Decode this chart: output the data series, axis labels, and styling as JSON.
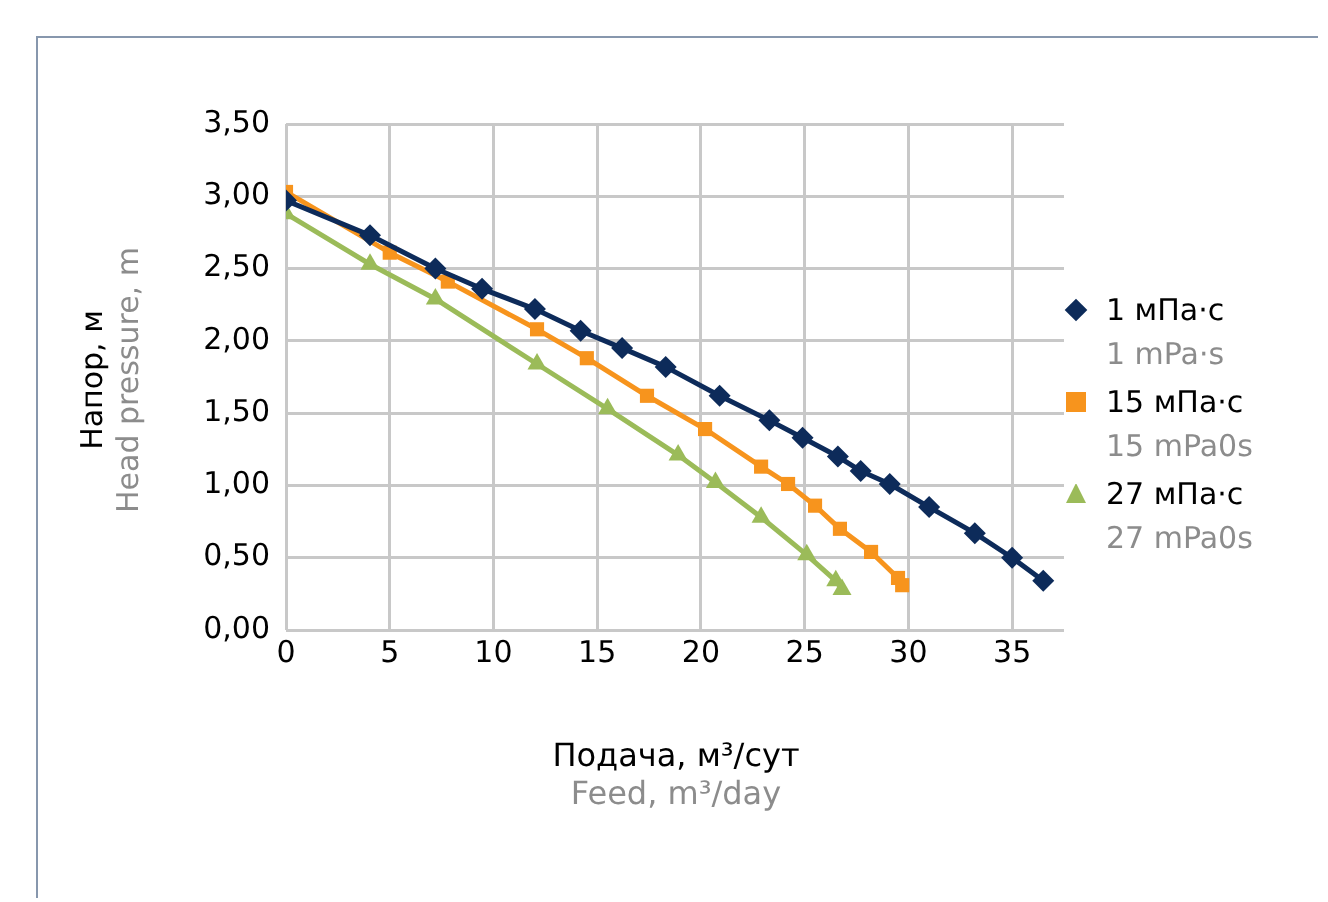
{
  "chart_data": {
    "type": "line",
    "xlabel": "Подача, м³/сут",
    "ylabel": "Напор, м",
    "annotations": [
      "Feed, m³/day",
      "Head pressure, m",
      "1 mPa·s",
      "15 mPa0s",
      "27 mPa0s"
    ],
    "xlim": [
      0,
      37.5
    ],
    "xticks": [
      0,
      5,
      10,
      15,
      20,
      25,
      30,
      35
    ],
    "ylim": [
      0,
      3.5
    ],
    "yticks": [
      {
        "value": 0,
        "label": "0,00"
      },
      {
        "value": 0.5,
        "label": "0,50"
      },
      {
        "value": 1,
        "label": "1,00"
      },
      {
        "value": 1.5,
        "label": "1,50"
      },
      {
        "value": 2,
        "label": "2,00"
      },
      {
        "value": 2.5,
        "label": "2,50"
      },
      {
        "value": 3,
        "label": "3,00"
      },
      {
        "value": 3.5,
        "label": "3,50"
      }
    ],
    "grid": true,
    "legend": "right",
    "line_style": "solid",
    "series": [
      {
        "name": "1 мПа·с",
        "color": "#0d2b5a",
        "marker": "diamond",
        "x": [
          0,
          4.05,
          7.2,
          9.45,
          12.0,
          14.2,
          16.2,
          18.3,
          20.9,
          23.3,
          24.9,
          26.6,
          27.7,
          29.1,
          31.0,
          33.2,
          35.0,
          36.5
        ],
        "values": [
          2.97,
          2.73,
          2.5,
          2.36,
          2.22,
          2.07,
          1.95,
          1.82,
          1.62,
          1.45,
          1.33,
          1.2,
          1.1,
          1.01,
          0.85,
          0.67,
          0.5,
          0.34
        ]
      },
      {
        "name": "15 мПа·с",
        "color": "#f7941d",
        "marker": "square",
        "x": [
          0,
          5.0,
          7.8,
          12.1,
          14.5,
          17.4,
          20.2,
          22.9,
          24.2,
          25.5,
          26.7,
          28.2,
          29.5,
          29.7
        ],
        "values": [
          3.03,
          2.61,
          2.41,
          2.08,
          1.88,
          1.62,
          1.39,
          1.13,
          1.01,
          0.86,
          0.7,
          0.54,
          0.36,
          0.31
        ]
      },
      {
        "name": "27 мПа·с",
        "color": "#9bbb59",
        "marker": "triangle",
        "x": [
          0,
          4.05,
          7.2,
          12.1,
          15.5,
          18.9,
          20.7,
          22.9,
          25.1,
          26.5,
          26.8
        ],
        "values": [
          2.88,
          2.53,
          2.29,
          1.84,
          1.53,
          1.21,
          1.02,
          0.78,
          0.52,
          0.34,
          0.28
        ]
      }
    ]
  }
}
